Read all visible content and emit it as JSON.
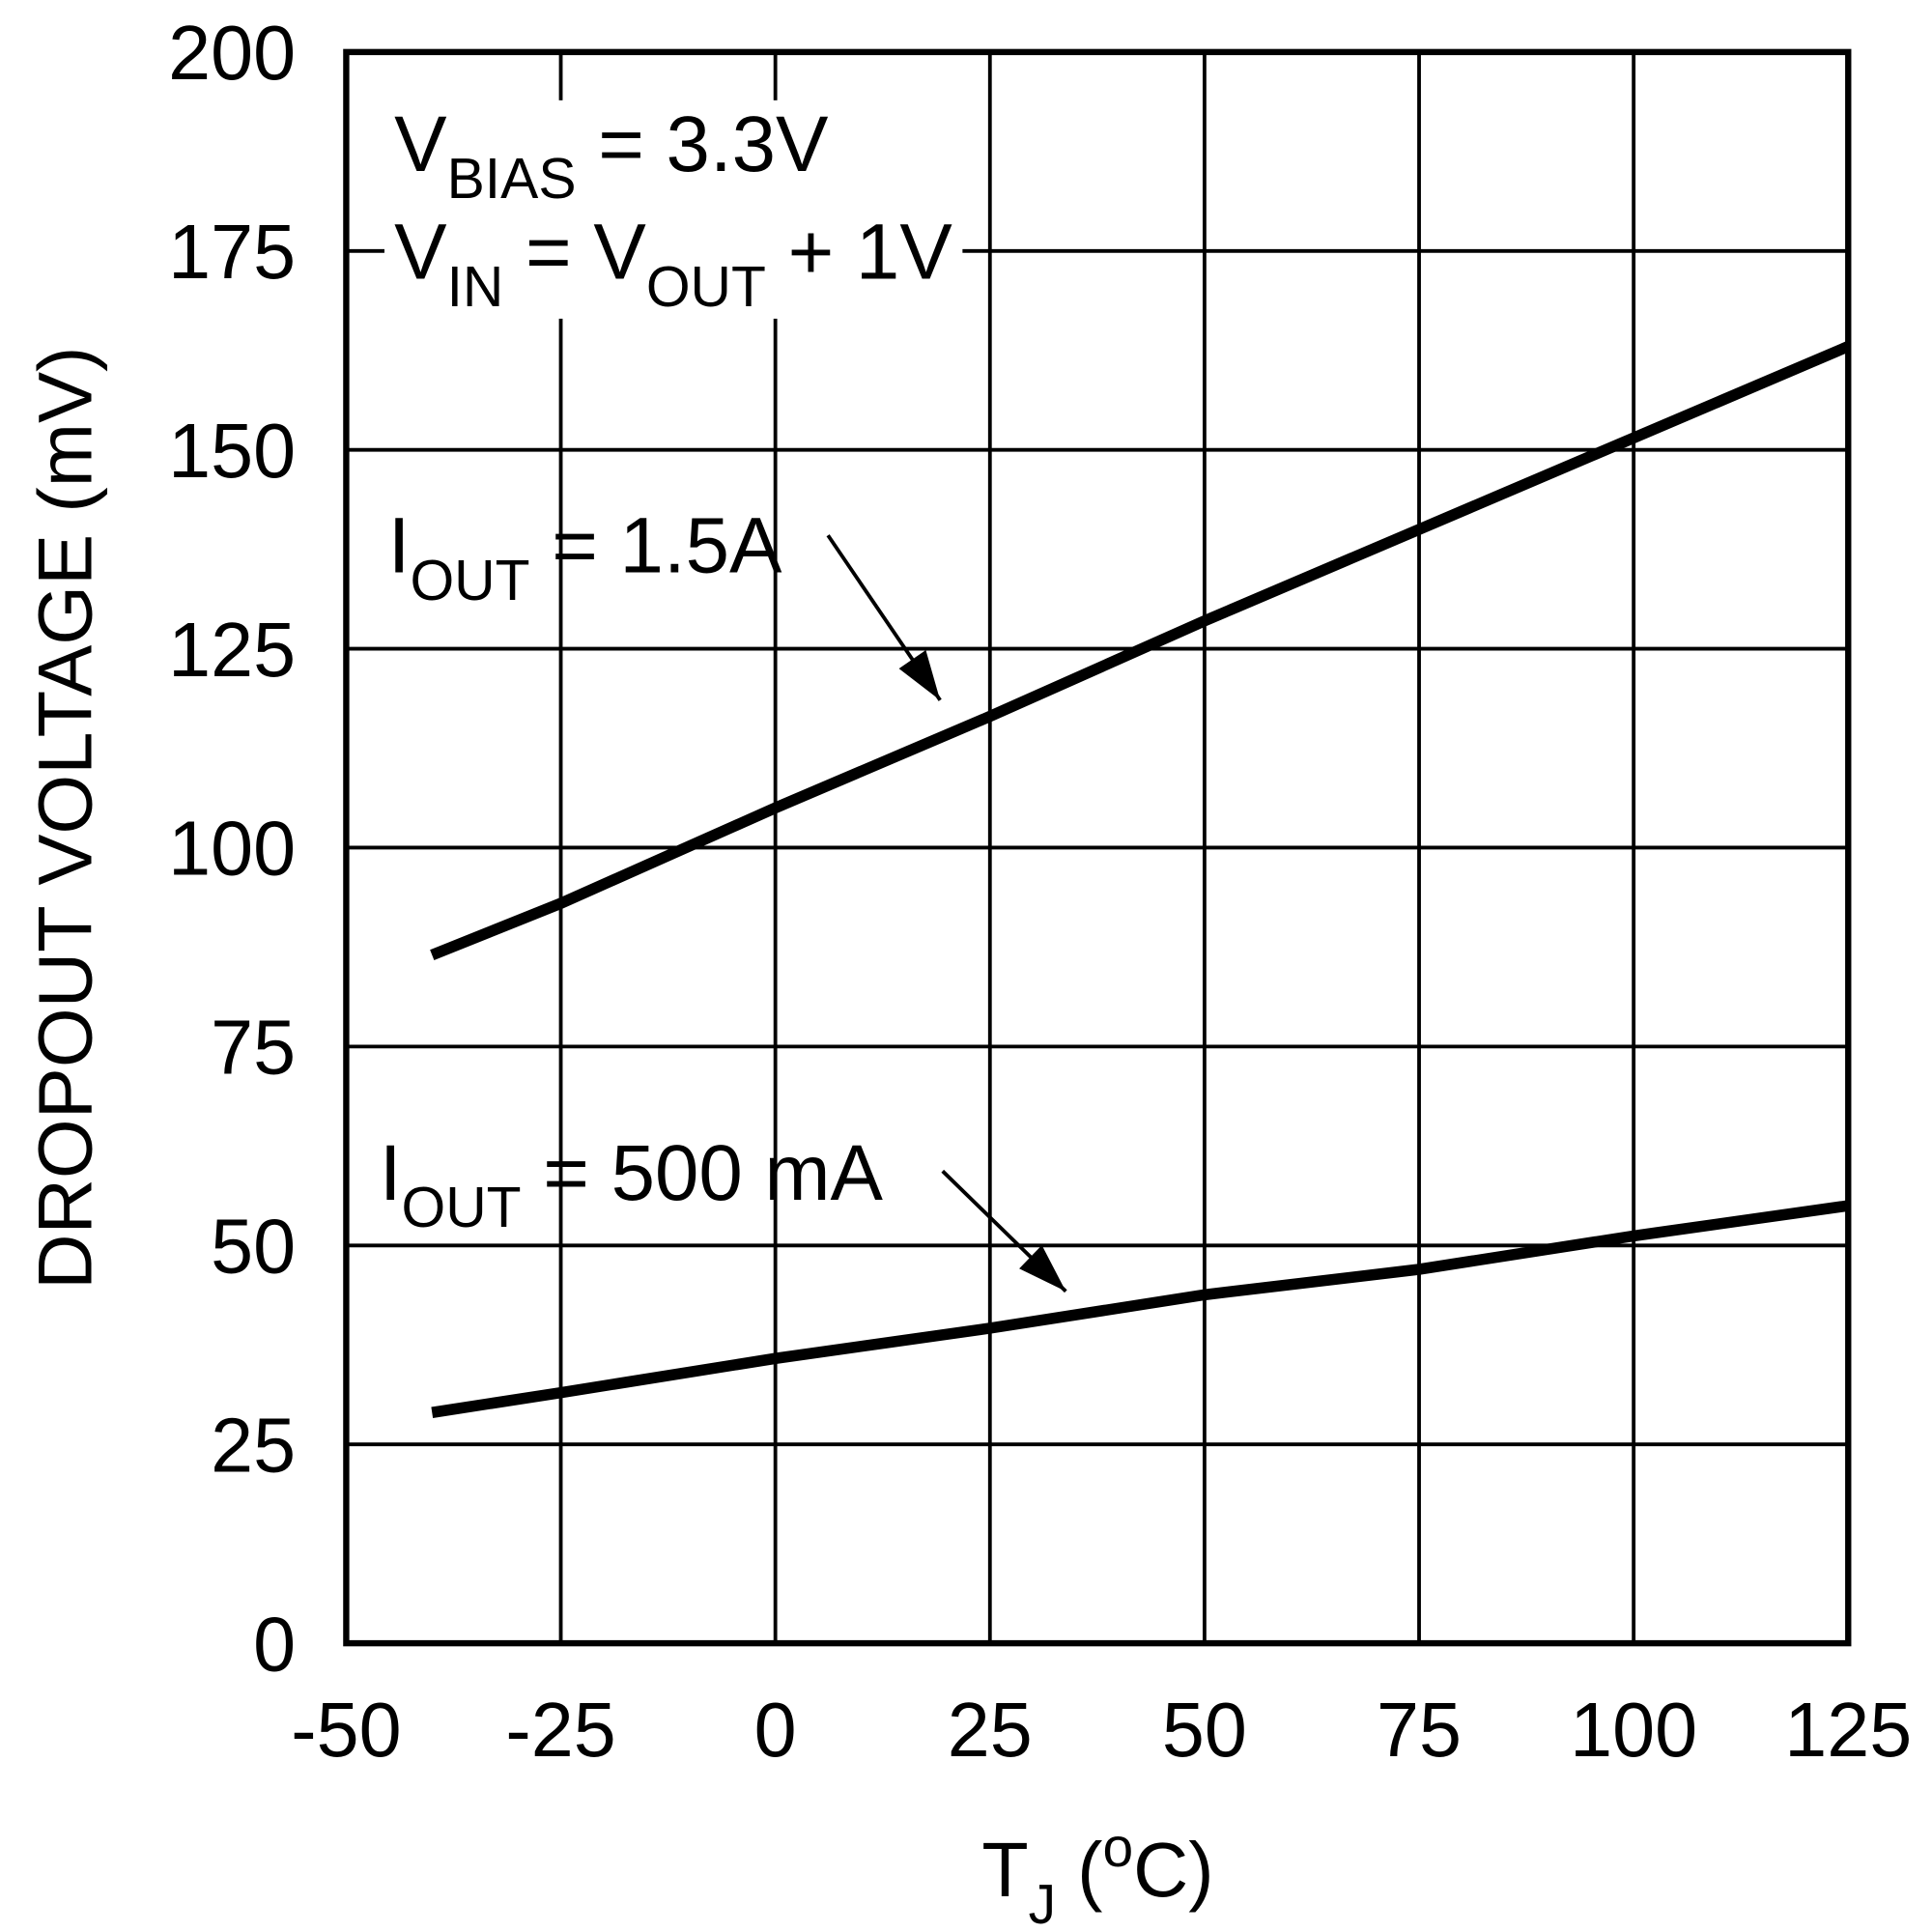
{
  "chart_data": {
    "type": "line",
    "x_label": [
      {
        "text": "T"
      },
      {
        "text": "J",
        "shift": "sub"
      },
      {
        "text": " ("
      },
      {
        "text": "o",
        "shift": "sup"
      },
      {
        "text": "C)"
      }
    ],
    "y_label": "DROPOUT VOLTAGE (mV)",
    "xlim": [
      -50,
      125
    ],
    "ylim": [
      0,
      200
    ],
    "xticks": [
      -50,
      -25,
      0,
      25,
      50,
      75,
      100,
      125
    ],
    "yticks": [
      0,
      25,
      50,
      75,
      100,
      125,
      150,
      175,
      200
    ],
    "grid": true,
    "x": [
      -40,
      -25,
      0,
      25,
      50,
      75,
      100,
      125
    ],
    "series": [
      {
        "name": [
          {
            "text": "I"
          },
          {
            "text": "OUT",
            "shift": "sub"
          },
          {
            "text": " = 1.5A"
          }
        ],
        "color": "#000000",
        "values": [
          86.5,
          93,
          105,
          116.5,
          128.5,
          140,
          151.5,
          163
        ]
      },
      {
        "name": [
          {
            "text": "I"
          },
          {
            "text": "OUT",
            "shift": "sub"
          },
          {
            "text": " = 500 mA"
          }
        ],
        "color": "#000000",
        "values": [
          29,
          31.5,
          35.8,
          39.6,
          43.8,
          47,
          51.2,
          55
        ]
      }
    ],
    "annotations": [
      [
        {
          "text": "V"
        },
        {
          "text": "BIAS",
          "shift": "sub"
        },
        {
          "text": " = 3.3V"
        }
      ],
      [
        {
          "text": "V"
        },
        {
          "text": "IN",
          "shift": "sub"
        },
        {
          "text": " = V"
        },
        {
          "text": "OUT",
          "shift": "sub"
        },
        {
          "text": " + 1V"
        }
      ]
    ]
  }
}
